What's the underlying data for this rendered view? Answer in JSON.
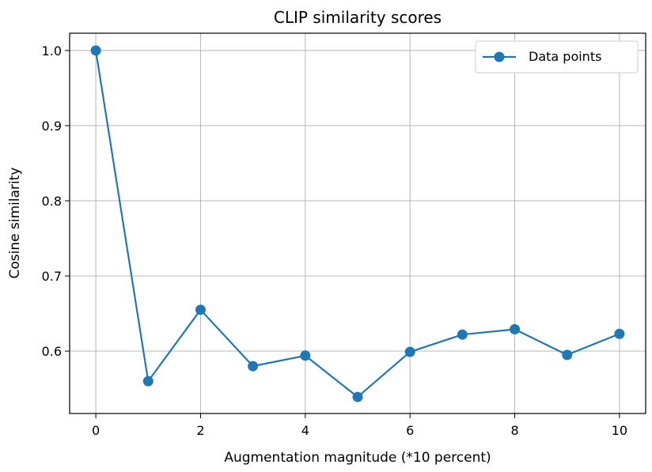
{
  "chart_data": {
    "type": "line",
    "title": "CLIP similarity scores",
    "xlabel": "Augmentation magnitude (*10 percent)",
    "ylabel": "Cosine similarity",
    "x": [
      0,
      1,
      2,
      3,
      4,
      5,
      6,
      7,
      8,
      9,
      10
    ],
    "series": [
      {
        "name": "Data points",
        "color": "#1f77b4",
        "marker": "circle",
        "values": [
          1.0,
          0.56,
          0.655,
          0.58,
          0.594,
          0.539,
          0.599,
          0.622,
          0.629,
          0.595,
          0.623
        ]
      }
    ],
    "xlim": [
      -0.5,
      10.5
    ],
    "ylim": [
      0.517,
      1.023
    ],
    "xticks": [
      0,
      2,
      4,
      6,
      8,
      10
    ],
    "yticks": [
      0.6,
      0.7,
      0.8,
      0.9,
      1.0
    ],
    "grid": true,
    "legend_position": "top-right"
  }
}
